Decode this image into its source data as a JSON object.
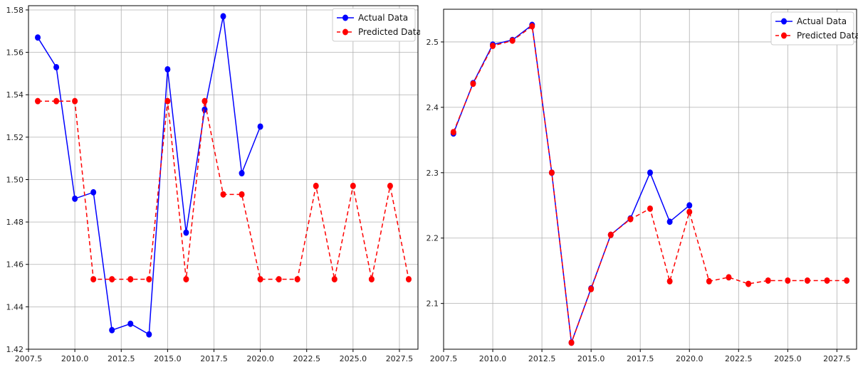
{
  "colors": {
    "actual": "#0000ff",
    "predicted": "#ff0000"
  },
  "chart_data": [
    {
      "type": "line",
      "title": "",
      "xlabel": "",
      "ylabel": "",
      "xlim": [
        2007.5,
        2028.5
      ],
      "ylim": [
        1.42,
        1.582
      ],
      "x_ticks": [
        2007.5,
        2010.0,
        2012.5,
        2015.0,
        2017.5,
        2020.0,
        2022.5,
        2025.0,
        2027.5
      ],
      "x_tick_labels": [
        "2007.5",
        "2010.0",
        "2012.5",
        "2015.0",
        "2017.5",
        "2020.0",
        "2022.5",
        "2025.0",
        "2027.5"
      ],
      "y_ticks": [
        1.42,
        1.44,
        1.46,
        1.48,
        1.5,
        1.52,
        1.54,
        1.56,
        1.58
      ],
      "y_tick_labels": [
        "1.42",
        "1.44",
        "1.46",
        "1.48",
        "1.50",
        "1.52",
        "1.54",
        "1.56",
        "1.58"
      ],
      "grid": true,
      "legend": "top-right",
      "series": [
        {
          "name": "Actual Data",
          "style": "solid",
          "color": "#0000ff",
          "x": [
            2008,
            2009,
            2010,
            2011,
            2012,
            2013,
            2014,
            2015,
            2016,
            2017,
            2018,
            2019,
            2020
          ],
          "y": [
            1.567,
            1.553,
            1.491,
            1.494,
            1.429,
            1.432,
            1.427,
            1.552,
            1.475,
            1.533,
            1.577,
            1.503,
            1.525
          ]
        },
        {
          "name": "Predicted Data",
          "style": "dashed",
          "color": "#ff0000",
          "x": [
            2008,
            2009,
            2010,
            2011,
            2012,
            2013,
            2014,
            2015,
            2016,
            2017,
            2018,
            2019,
            2020,
            2021,
            2022,
            2023,
            2024,
            2025,
            2026,
            2027,
            2028
          ],
          "y": [
            1.537,
            1.537,
            1.537,
            1.453,
            1.453,
            1.453,
            1.453,
            1.537,
            1.453,
            1.537,
            1.493,
            1.493,
            1.453,
            1.453,
            1.453,
            1.497,
            1.453,
            1.497,
            1.453,
            1.497,
            1.453
          ]
        }
      ]
    },
    {
      "type": "line",
      "title": "",
      "xlabel": "",
      "ylabel": "",
      "xlim": [
        2007.5,
        2028.5
      ],
      "ylim": [
        2.03,
        2.55
      ],
      "x_ticks": [
        2007.5,
        2010.0,
        2012.5,
        2015.0,
        2017.5,
        2020.0,
        2022.5,
        2025.0,
        2027.5
      ],
      "x_tick_labels": [
        "2007.5",
        "2010.0",
        "2012.5",
        "2015.0",
        "2017.5",
        "2020.0",
        "2022.5",
        "2025.0",
        "2027.5"
      ],
      "y_ticks": [
        2.1,
        2.2,
        2.3,
        2.4,
        2.5
      ],
      "y_tick_labels": [
        "2.1",
        "2.2",
        "2.3",
        "2.4",
        "2.5"
      ],
      "grid": true,
      "legend": "top-right",
      "series": [
        {
          "name": "Actual Data",
          "style": "solid",
          "color": "#0000ff",
          "x": [
            2008,
            2009,
            2010,
            2011,
            2012,
            2013,
            2014,
            2015,
            2016,
            2017,
            2018,
            2019,
            2020
          ],
          "y": [
            2.36,
            2.437,
            2.496,
            2.503,
            2.526,
            2.3,
            2.04,
            2.123,
            2.205,
            2.23,
            2.3,
            2.225,
            2.25
          ]
        },
        {
          "name": "Predicted Data",
          "style": "dashed",
          "color": "#ff0000",
          "x": [
            2008,
            2009,
            2010,
            2011,
            2012,
            2013,
            2014,
            2015,
            2016,
            2017,
            2018,
            2019,
            2020,
            2021,
            2022,
            2023,
            2024,
            2025,
            2026,
            2027,
            2028
          ],
          "y": [
            2.362,
            2.436,
            2.494,
            2.502,
            2.524,
            2.3,
            2.04,
            2.122,
            2.205,
            2.229,
            2.245,
            2.134,
            2.24,
            2.134,
            2.14,
            2.13,
            2.135,
            2.135,
            2.135,
            2.135,
            2.135
          ]
        }
      ]
    }
  ]
}
